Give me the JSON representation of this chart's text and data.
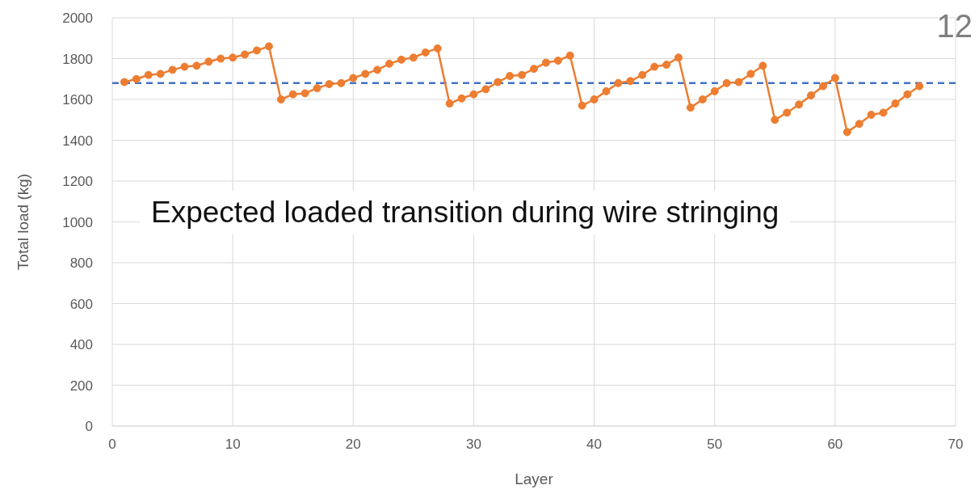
{
  "chart_data": {
    "type": "line",
    "xlabel": "Layer",
    "ylabel": "Total load (kg)",
    "annotations": [
      "Expected loaded transition during wire stringing",
      "12"
    ],
    "x": [
      1,
      2,
      3,
      4,
      5,
      6,
      7,
      8,
      9,
      10,
      11,
      12,
      13,
      14,
      15,
      16,
      17,
      18,
      19,
      20,
      21,
      22,
      23,
      24,
      25,
      26,
      27,
      28,
      29,
      30,
      31,
      32,
      33,
      34,
      35,
      36,
      37,
      38,
      39,
      40,
      41,
      42,
      43,
      44,
      45,
      46,
      47,
      48,
      49,
      50,
      51,
      52,
      53,
      54,
      55,
      56,
      57,
      58,
      59,
      60,
      61,
      62,
      63,
      64,
      65,
      66,
      67
    ],
    "series": [
      {
        "color": "#ed7d31",
        "values": [
          1685,
          1700,
          1720,
          1725,
          1745,
          1760,
          1765,
          1785,
          1800,
          1805,
          1820,
          1840,
          1860,
          1600,
          1625,
          1630,
          1655,
          1675,
          1680,
          1705,
          1725,
          1745,
          1775,
          1795,
          1805,
          1830,
          1850,
          1580,
          1605,
          1625,
          1650,
          1685,
          1715,
          1720,
          1750,
          1780,
          1790,
          1815,
          1570,
          1600,
          1640,
          1680,
          1690,
          1720,
          1760,
          1770,
          1805,
          1560,
          1600,
          1640,
          1680,
          1685,
          1725,
          1765,
          1500,
          1535,
          1575,
          1620,
          1665,
          1705,
          1440,
          1480,
          1525,
          1535,
          1580,
          1625,
          1665
        ]
      }
    ],
    "ref_lines": [
      {
        "axis": "y",
        "value": 1680,
        "color": "#4472c4",
        "line_style": "dashed"
      }
    ],
    "xlim": [
      0,
      70
    ],
    "xticks": [
      0,
      10,
      20,
      30,
      40,
      50,
      60,
      70
    ],
    "ylim": [
      0,
      2000
    ],
    "yticks": [
      0,
      200,
      400,
      600,
      800,
      1000,
      1200,
      1400,
      1600,
      1800,
      2000
    ],
    "grid": true,
    "marker": "circle",
    "line_style": "solid",
    "legend": false
  }
}
